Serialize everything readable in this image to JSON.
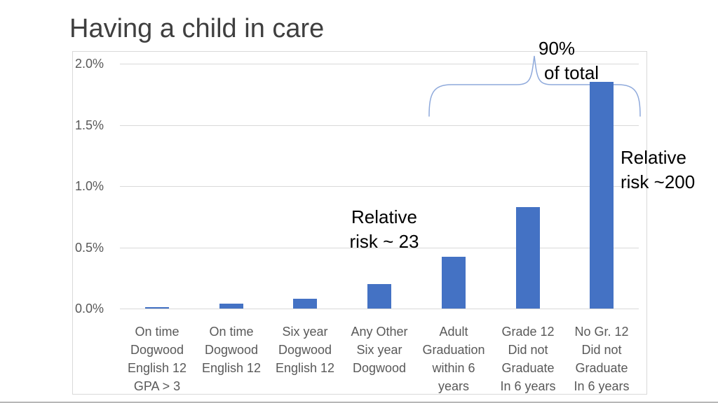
{
  "slide": {
    "title": "Having a child in care"
  },
  "chart_data": {
    "type": "bar",
    "title": "Having a child in care",
    "xlabel": "",
    "ylabel": "",
    "unit": "percent",
    "ylim": [
      0,
      2.0
    ],
    "grid": true,
    "legend": false,
    "ytick_labels": [
      "0.0%",
      "0.5%",
      "1.0%",
      "1.5%",
      "2.0%"
    ],
    "ytick_values": [
      0,
      0.5,
      1.0,
      1.5,
      2.0
    ],
    "categories": [
      [
        "On time",
        "Dogwood",
        "English 12",
        "GPA > 3"
      ],
      [
        "On  time",
        "Dogwood",
        "English 12"
      ],
      [
        "Six year",
        "Dogwood",
        "English 12"
      ],
      [
        "Any Other",
        "Six year",
        "Dogwood"
      ],
      [
        "Adult",
        "Graduation",
        "within 6",
        "years"
      ],
      [
        "Grade 12",
        "Did not",
        "Graduate",
        "In 6 years"
      ],
      [
        "No Gr. 12",
        "Did not",
        "Graduate",
        "In 6 years"
      ]
    ],
    "values": [
      0.01,
      0.04,
      0.08,
      0.2,
      0.42,
      0.83,
      1.85
    ],
    "annotations": [
      {
        "id": "total-share",
        "lines": [
          "90%",
          "of total"
        ],
        "target": "last three bars"
      },
      {
        "id": "relative-risk-mid",
        "lines": [
          "Relative",
          "risk ~ 23"
        ]
      },
      {
        "id": "relative-risk-high",
        "lines": [
          "Relative",
          "risk ~200"
        ]
      }
    ]
  },
  "colors": {
    "bar": "#4472C4",
    "brace": "#8EA9DB",
    "gridline": "#D9D9D9",
    "axis_text": "#595959",
    "title_text": "#3F3F3F",
    "annotation_text": "#000000",
    "frame_border": "#D9D9D9"
  }
}
